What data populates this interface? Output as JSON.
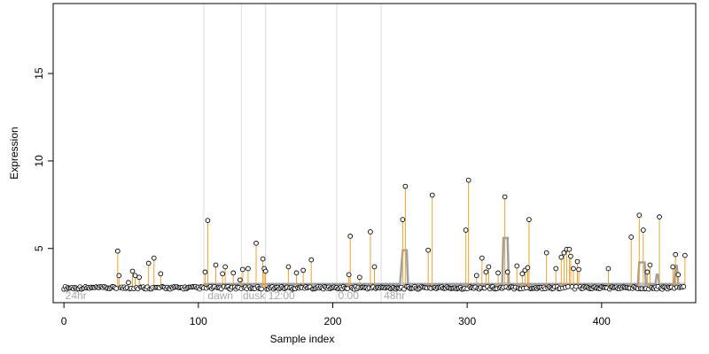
{
  "chart_data": {
    "type": "scatter",
    "title": "",
    "xlabel": "Sample index",
    "ylabel": "Expression",
    "xlim": [
      -8,
      470
    ],
    "ylim": [
      1.9,
      19.0
    ],
    "xticks": [
      0,
      100,
      200,
      300,
      400
    ],
    "xtick_labels": [
      "0",
      "100",
      "200",
      "300",
      "400"
    ],
    "yticks": [
      5,
      10,
      15
    ],
    "ytick_labels": [
      "5",
      "10",
      "15"
    ],
    "grid": false,
    "legend": "none",
    "baseline": 2.75,
    "region_bounds": [
      104,
      132,
      150,
      203,
      236
    ],
    "region_labels": [
      {
        "x": 1,
        "text": "24hr"
      },
      {
        "x": 107,
        "text": "dawn"
      },
      {
        "x": 133,
        "text": "dusk"
      },
      {
        "x": 152,
        "text": "12:00"
      },
      {
        "x": 204,
        "text": "0:00"
      },
      {
        "x": 238,
        "text": "48hr"
      }
    ],
    "model_fit": {
      "x": [
        104,
        250,
        252,
        255,
        256,
        262,
        326,
        327,
        330,
        331,
        338,
        427,
        428,
        432,
        433,
        440,
        441,
        442,
        443,
        444,
        454,
        455,
        456,
        457
      ],
      "y": [
        2.95,
        2.95,
        4.9,
        4.9,
        2.95,
        2.95,
        2.95,
        5.6,
        5.6,
        2.95,
        2.95,
        2.95,
        4.2,
        4.2,
        2.95,
        2.95,
        3.5,
        3.5,
        2.95,
        2.95,
        2.95,
        4.0,
        4.0,
        2.95
      ],
      "line_x_range": [
        104,
        462
      ]
    },
    "peaks": [
      {
        "x": 40,
        "y": 4.85
      },
      {
        "x": 41,
        "y": 3.45
      },
      {
        "x": 48,
        "y": 3.05
      },
      {
        "x": 51,
        "y": 3.7
      },
      {
        "x": 53,
        "y": 3.45
      },
      {
        "x": 56,
        "y": 3.35
      },
      {
        "x": 63,
        "y": 4.15
      },
      {
        "x": 67,
        "y": 4.45
      },
      {
        "x": 72,
        "y": 3.55
      },
      {
        "x": 105,
        "y": 3.65
      },
      {
        "x": 107,
        "y": 6.6
      },
      {
        "x": 113,
        "y": 4.05
      },
      {
        "x": 118,
        "y": 3.55
      },
      {
        "x": 120,
        "y": 3.95
      },
      {
        "x": 126,
        "y": 3.6
      },
      {
        "x": 131,
        "y": 3.2
      },
      {
        "x": 133,
        "y": 3.8
      },
      {
        "x": 137,
        "y": 3.85
      },
      {
        "x": 143,
        "y": 5.3
      },
      {
        "x": 148,
        "y": 4.4
      },
      {
        "x": 149,
        "y": 3.85
      },
      {
        "x": 150,
        "y": 3.7
      },
      {
        "x": 167,
        "y": 3.95
      },
      {
        "x": 173,
        "y": 3.6
      },
      {
        "x": 178,
        "y": 3.75
      },
      {
        "x": 184,
        "y": 4.35
      },
      {
        "x": 212,
        "y": 3.5
      },
      {
        "x": 213,
        "y": 5.7
      },
      {
        "x": 220,
        "y": 3.35
      },
      {
        "x": 228,
        "y": 5.95
      },
      {
        "x": 231,
        "y": 3.95
      },
      {
        "x": 252,
        "y": 6.65
      },
      {
        "x": 254,
        "y": 8.55
      },
      {
        "x": 271,
        "y": 4.9
      },
      {
        "x": 274,
        "y": 8.05
      },
      {
        "x": 299,
        "y": 6.05
      },
      {
        "x": 301,
        "y": 8.9
      },
      {
        "x": 307,
        "y": 3.45
      },
      {
        "x": 311,
        "y": 4.45
      },
      {
        "x": 314,
        "y": 3.65
      },
      {
        "x": 316,
        "y": 3.95
      },
      {
        "x": 323,
        "y": 3.6
      },
      {
        "x": 328,
        "y": 7.95
      },
      {
        "x": 330,
        "y": 3.65
      },
      {
        "x": 337,
        "y": 4.0
      },
      {
        "x": 341,
        "y": 3.55
      },
      {
        "x": 343,
        "y": 3.75
      },
      {
        "x": 345,
        "y": 3.9
      },
      {
        "x": 346,
        "y": 6.65
      },
      {
        "x": 359,
        "y": 4.75
      },
      {
        "x": 366,
        "y": 3.85
      },
      {
        "x": 370,
        "y": 4.5
      },
      {
        "x": 372,
        "y": 4.75
      },
      {
        "x": 374,
        "y": 4.95
      },
      {
        "x": 376,
        "y": 4.95
      },
      {
        "x": 377,
        "y": 4.55
      },
      {
        "x": 379,
        "y": 3.85
      },
      {
        "x": 382,
        "y": 4.25
      },
      {
        "x": 383,
        "y": 3.8
      },
      {
        "x": 405,
        "y": 3.85
      },
      {
        "x": 422,
        "y": 5.65
      },
      {
        "x": 428,
        "y": 6.9
      },
      {
        "x": 431,
        "y": 6.05
      },
      {
        "x": 434,
        "y": 3.65
      },
      {
        "x": 436,
        "y": 4.05
      },
      {
        "x": 443,
        "y": 6.8
      },
      {
        "x": 453,
        "y": 3.95
      },
      {
        "x": 455,
        "y": 4.65
      },
      {
        "x": 457,
        "y": 3.5
      },
      {
        "x": 462,
        "y": 4.6
      }
    ],
    "background_points_x_range": [
      0,
      462
    ],
    "background_level": 2.75
  }
}
